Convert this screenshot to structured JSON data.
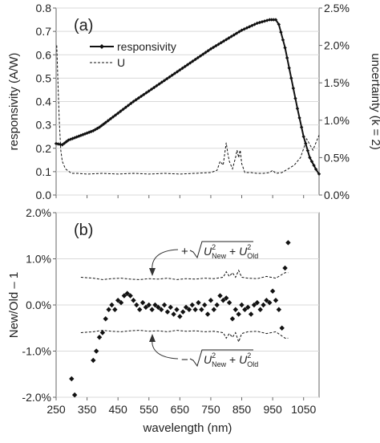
{
  "chart_data": [
    {
      "panel_label": "(a)",
      "type": "line",
      "xlim": [
        250,
        1100
      ],
      "x_ticks": [
        "250",
        "350",
        "450",
        "550",
        "650",
        "750",
        "850",
        "950",
        "1050"
      ],
      "ylabel": "responsivity (A/W)",
      "ylim": [
        0,
        0.8
      ],
      "y_ticks": [
        "0.0",
        "0.1",
        "0.2",
        "0.3",
        "0.4",
        "0.5",
        "0.6",
        "0.7",
        "0.8"
      ],
      "y2label": "uncertainty (k = 2)",
      "y2lim": [
        0,
        2.5
      ],
      "y2_ticks": [
        "0.0%",
        "0.5%",
        "1.0%",
        "1.5%",
        "2.0%",
        "2.5%"
      ],
      "legend": {
        "position": "top-center",
        "entries": [
          "responsivity",
          "U"
        ]
      },
      "series": [
        {
          "name": "responsivity",
          "style": "solid line with diamond markers",
          "axis": "left",
          "x": [
            250,
            270,
            290,
            310,
            330,
            350,
            370,
            390,
            410,
            450,
            500,
            550,
            600,
            650,
            700,
            750,
            800,
            850,
            900,
            940,
            960,
            970,
            990,
            1010,
            1030,
            1050,
            1070,
            1090,
            1100
          ],
          "y": [
            0.22,
            0.215,
            0.235,
            0.245,
            0.255,
            0.265,
            0.275,
            0.29,
            0.31,
            0.35,
            0.4,
            0.445,
            0.49,
            0.535,
            0.58,
            0.625,
            0.665,
            0.705,
            0.735,
            0.75,
            0.75,
            0.73,
            0.63,
            0.5,
            0.37,
            0.25,
            0.16,
            0.11,
            0.09
          ]
        },
        {
          "name": "U",
          "style": "dashed line",
          "axis": "right",
          "x": [
            252,
            256,
            260,
            265,
            270,
            280,
            290,
            300,
            320,
            350,
            400,
            450,
            500,
            550,
            600,
            650,
            700,
            750,
            770,
            780,
            790,
            795,
            800,
            805,
            810,
            820,
            830,
            835,
            840,
            845,
            850,
            860,
            880,
            900,
            920,
            940,
            950,
            960,
            980,
            1000,
            1020,
            1040,
            1050,
            1060,
            1080,
            1100
          ],
          "y": [
            2.0,
            1.5,
            1.0,
            0.6,
            0.45,
            0.35,
            0.32,
            0.29,
            0.29,
            0.28,
            0.29,
            0.28,
            0.29,
            0.28,
            0.29,
            0.28,
            0.29,
            0.3,
            0.33,
            0.45,
            0.4,
            0.55,
            0.7,
            0.55,
            0.45,
            0.35,
            0.5,
            0.6,
            0.5,
            0.6,
            0.42,
            0.3,
            0.3,
            0.29,
            0.29,
            0.3,
            0.33,
            0.29,
            0.3,
            0.35,
            0.4,
            0.5,
            0.62,
            0.75,
            0.6,
            0.8
          ]
        }
      ]
    },
    {
      "panel_label": "(b)",
      "type": "scatter",
      "xlabel": "wavelength (nm)",
      "xlim": [
        250,
        1100
      ],
      "x_ticks": [
        "250",
        "350",
        "450",
        "550",
        "650",
        "750",
        "850",
        "950",
        "1050"
      ],
      "ylabel": "New/Old – 1",
      "ylim": [
        -2.0,
        2.0
      ],
      "y_ticks": [
        "-2.0%",
        "-1.0%",
        "0.0%",
        "1.0%",
        "2.0%"
      ],
      "annotation_top": {
        "sign": "+",
        "term1": "U",
        "sub1": "New",
        "term2": "U",
        "sub2": "Old",
        "power": "2"
      },
      "annotation_bottom": {
        "sign": "−",
        "term1": "U",
        "sub1": "New",
        "term2": "U",
        "sub2": "Old",
        "power": "2"
      },
      "series": [
        {
          "name": "New/Old – 1",
          "style": "diamond markers",
          "x": [
            300,
            310,
            370,
            380,
            390,
            400,
            410,
            420,
            430,
            440,
            450,
            460,
            470,
            480,
            490,
            500,
            510,
            520,
            530,
            540,
            550,
            560,
            570,
            580,
            590,
            600,
            610,
            620,
            630,
            640,
            650,
            660,
            670,
            680,
            690,
            700,
            710,
            720,
            730,
            740,
            750,
            760,
            770,
            780,
            790,
            800,
            810,
            820,
            830,
            840,
            850,
            860,
            870,
            880,
            890,
            900,
            910,
            920,
            930,
            940,
            950,
            960,
            970,
            980,
            990,
            1000
          ],
          "y": [
            -1.6,
            -1.95,
            -1.2,
            -1.0,
            -0.7,
            -0.6,
            -0.3,
            -0.1,
            0.0,
            -0.1,
            0.1,
            0.05,
            0.2,
            0.25,
            0.2,
            0.1,
            0.0,
            -0.1,
            0.05,
            -0.05,
            0.0,
            -0.1,
            0.0,
            -0.05,
            -0.1,
            0.0,
            -0.15,
            -0.05,
            -0.2,
            -0.1,
            -0.25,
            -0.15,
            -0.05,
            -0.1,
            0.0,
            -0.1,
            0.05,
            -0.1,
            0.0,
            -0.2,
            0.1,
            -0.1,
            0.0,
            0.2,
            0.1,
            0.15,
            0.05,
            -0.3,
            -0.1,
            -0.2,
            0.0,
            -0.1,
            -0.05,
            -0.2,
            0.0,
            0.05,
            -0.1,
            0.0,
            0.1,
            0.05,
            0.3,
            0.1,
            -0.1,
            -0.5,
            0.8,
            1.35
          ]
        },
        {
          "name": "+uncertainty",
          "style": "dashed line",
          "x": [
            330,
            370,
            400,
            430,
            460,
            490,
            520,
            550,
            580,
            610,
            640,
            670,
            700,
            730,
            760,
            790,
            800,
            810,
            820,
            830,
            840,
            850,
            870,
            900,
            930,
            960,
            990,
            1000
          ],
          "y": [
            0.6,
            0.58,
            0.55,
            0.57,
            0.58,
            0.56,
            0.55,
            0.57,
            0.56,
            0.58,
            0.55,
            0.57,
            0.56,
            0.58,
            0.57,
            0.6,
            0.72,
            0.62,
            0.7,
            0.6,
            0.75,
            0.6,
            0.58,
            0.57,
            0.62,
            0.58,
            0.7,
            0.7
          ]
        },
        {
          "name": "−uncertainty",
          "style": "dashed line",
          "x": [
            330,
            370,
            400,
            430,
            460,
            490,
            520,
            550,
            580,
            610,
            640,
            670,
            700,
            730,
            760,
            790,
            800,
            810,
            820,
            830,
            840,
            850,
            870,
            900,
            930,
            960,
            990,
            1000
          ],
          "y": [
            -0.6,
            -0.58,
            -0.55,
            -0.57,
            -0.58,
            -0.56,
            -0.55,
            -0.57,
            -0.56,
            -0.58,
            -0.55,
            -0.57,
            -0.56,
            -0.58,
            -0.57,
            -0.6,
            -0.72,
            -0.62,
            -0.7,
            -0.6,
            -0.8,
            -0.62,
            -0.58,
            -0.57,
            -0.62,
            -0.58,
            -0.72,
            -0.72
          ]
        }
      ]
    }
  ]
}
